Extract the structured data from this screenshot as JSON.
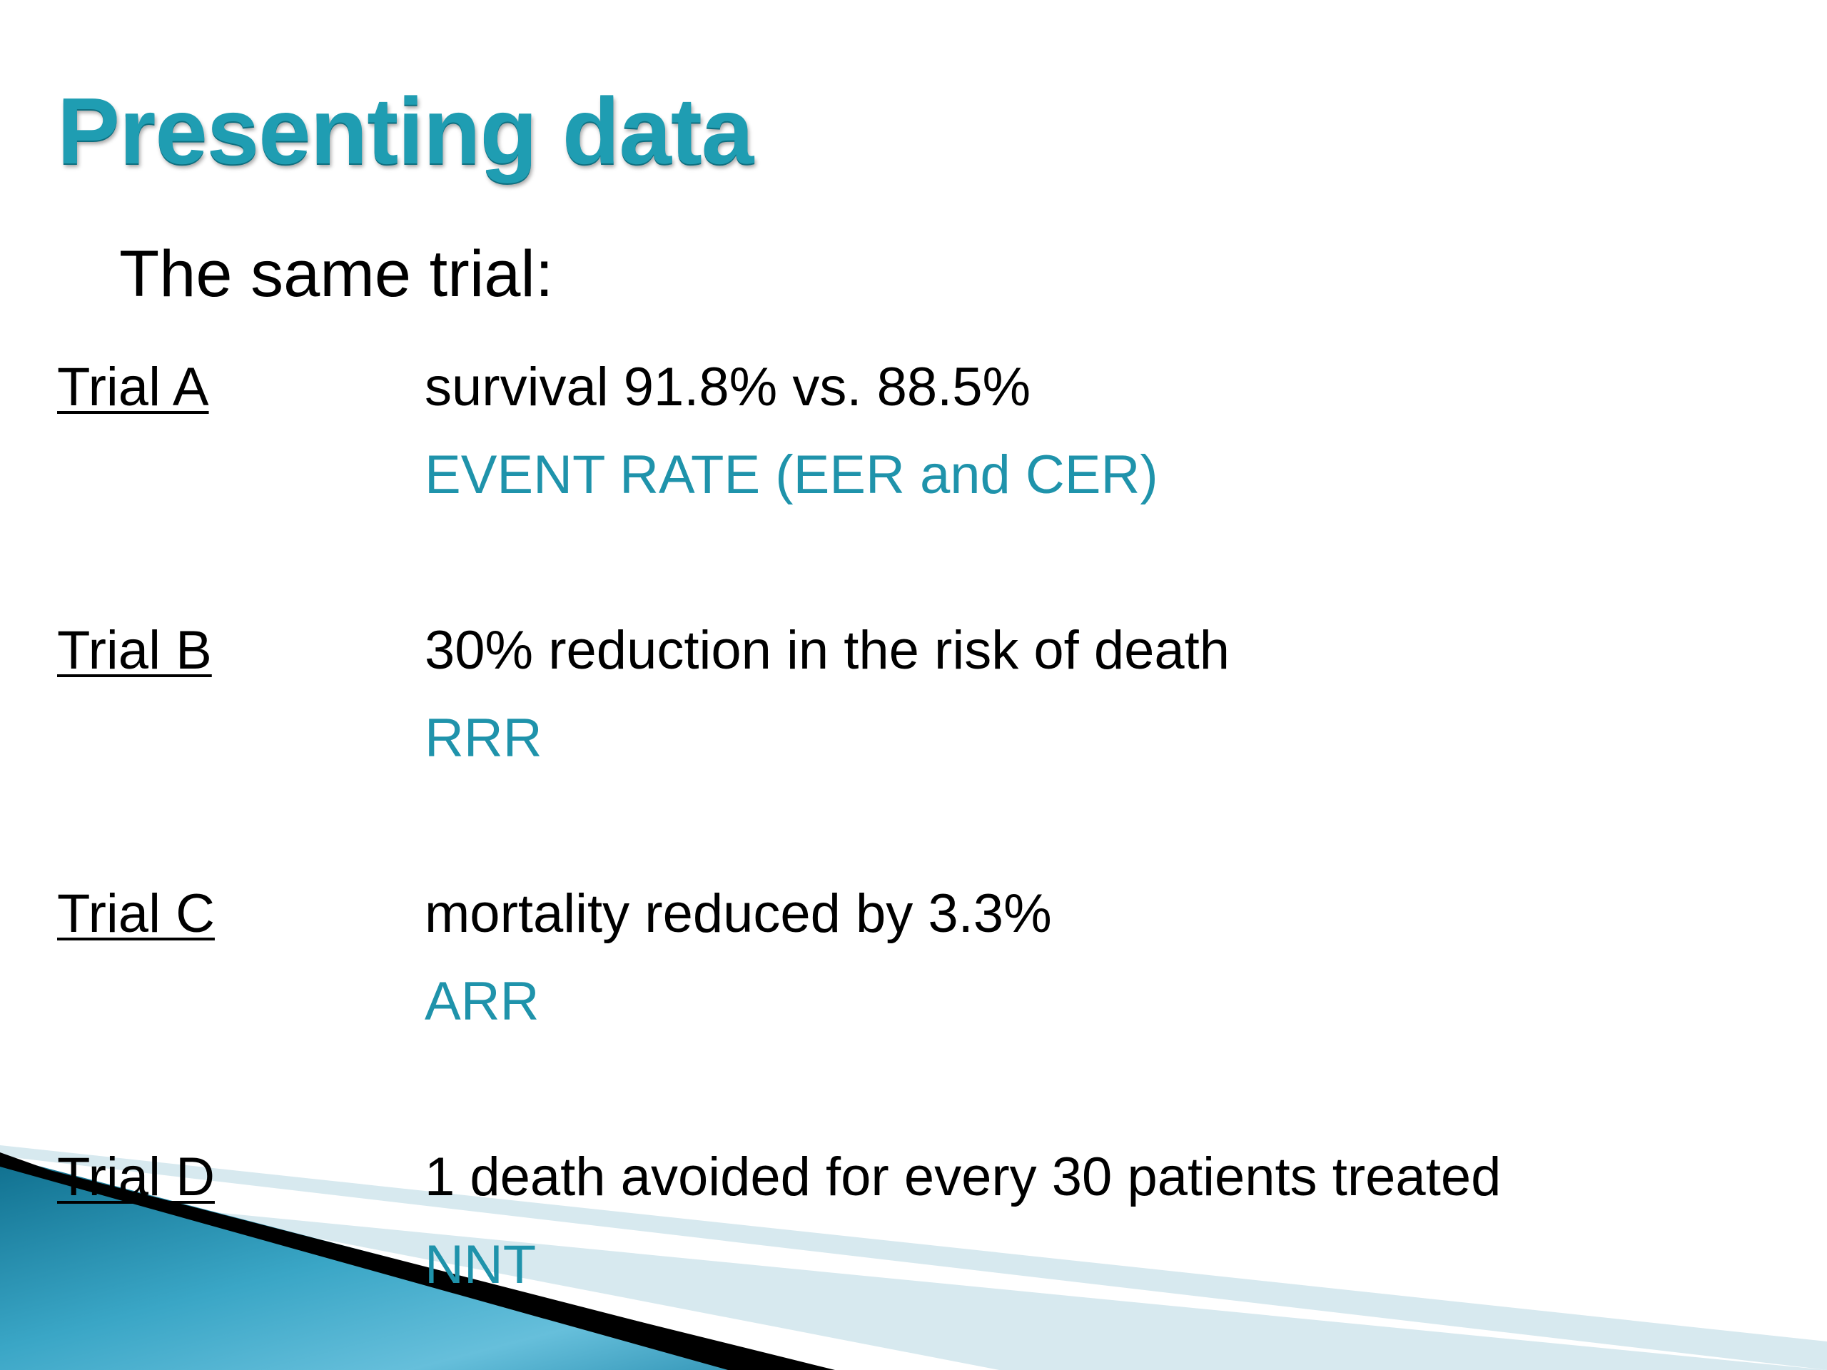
{
  "slide": {
    "title": "Presenting data",
    "subtitle": "The same trial:",
    "trials": [
      {
        "label": "Trial A",
        "description": "survival 91.8% vs. 88.5%",
        "measure": "EVENT RATE (EER and CER)"
      },
      {
        "label": "Trial B",
        "description": "30% reduction in the risk of death",
        "measure": "RRR"
      },
      {
        "label": "Trial C",
        "description": "mortality reduced by 3.3%",
        "measure": "ARR"
      },
      {
        "label": "Trial D",
        "description": "1 death avoided for every 30 patients treated",
        "measure": "NNT"
      }
    ]
  },
  "colors": {
    "title": "#1f9db2",
    "measure": "#1f93ab",
    "body_text": "#000000",
    "decoration_blue": "#1a86a8",
    "decoration_light": "#d7e9ef",
    "decoration_dark": "#000000"
  }
}
